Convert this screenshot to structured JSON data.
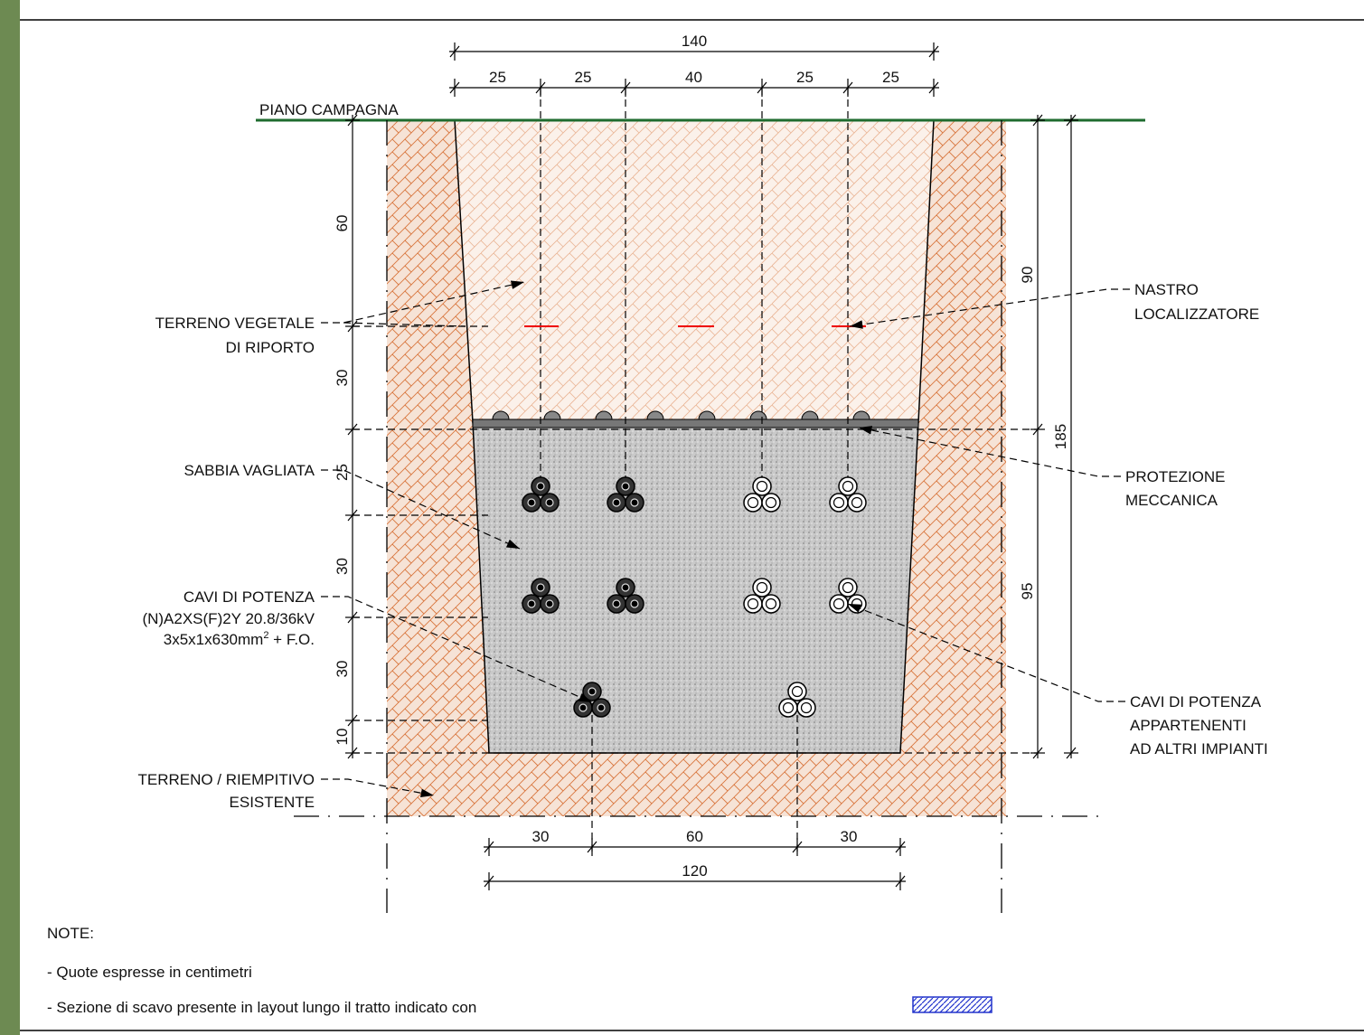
{
  "ground_label": "PIANO CAMPAGNA",
  "top_dims": {
    "total": "140",
    "parts": [
      "25",
      "25",
      "40",
      "25",
      "25"
    ]
  },
  "left_dims": [
    "60",
    "30",
    "25",
    "30",
    "30",
    "10"
  ],
  "right_dims": {
    "upper": "90",
    "lower": "95",
    "total": "185"
  },
  "bottom_dims": {
    "parts": [
      "30",
      "60",
      "30"
    ],
    "total": "120"
  },
  "left_labels": {
    "topsoil": [
      "TERRENO VEGETALE",
      "DI RIPORTO"
    ],
    "sand": "SABBIA VAGLIATA",
    "cables": [
      "CAVI DI POTENZA",
      "(N)A2XS(F)2Y 20.8/36kV",
      {
        "text": "3x5x1x630mm",
        "sup": "2",
        "tail": " + F.O."
      }
    ],
    "fill": [
      "TERRENO / RIEMPITIVO",
      "ESISTENTE"
    ]
  },
  "right_labels": {
    "tape": [
      "NASTRO",
      "LOCALIZZATORE"
    ],
    "protection": [
      "PROTEZIONE",
      "MECCANICA"
    ],
    "other_cables": [
      "CAVI DI POTENZA",
      "APPARTENENTI",
      "AD ALTRI IMPIANTI"
    ]
  },
  "notes": {
    "title": "NOTE:",
    "lines": [
      "- Quote espresse in centimetri",
      "- Sezione di scavo presente in layout lungo il tratto indicato con"
    ]
  }
}
